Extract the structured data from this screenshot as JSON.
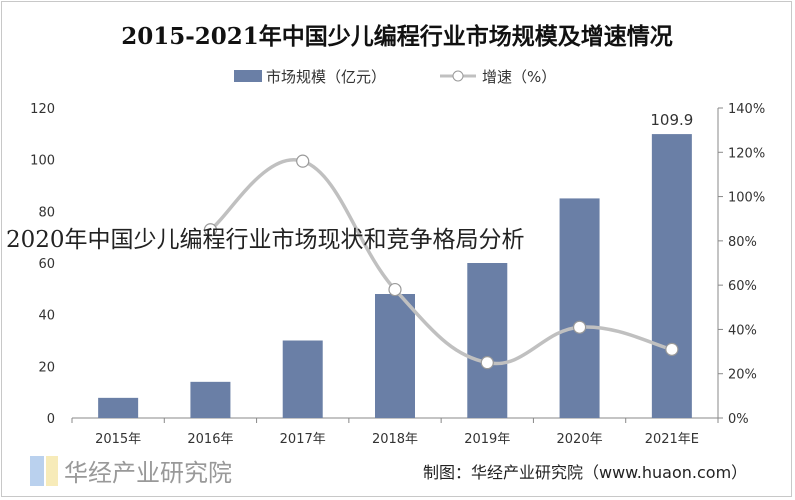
{
  "chart_data": {
    "type": "bar+line",
    "title": "2015-2021年中国少儿编程行业市场规模及增速情况",
    "categories": [
      "2015年",
      "2016年",
      "2017年",
      "2018年",
      "2019年",
      "2020年",
      "2021年E"
    ],
    "series": [
      {
        "name": "市场规模（亿元）",
        "type": "bar",
        "axis": "left",
        "color": "#6a7fa6",
        "values": [
          7.8,
          14,
          30,
          48,
          60,
          85,
          109.9
        ]
      },
      {
        "name": "增速（%）",
        "type": "line",
        "axis": "right",
        "color": "#c0c0c0",
        "values": [
          null,
          85,
          116,
          58,
          25,
          41,
          31
        ]
      }
    ],
    "data_labels": {
      "2021年E": "109.9"
    },
    "left_axis": {
      "ylim": [
        0,
        120
      ],
      "ticks": [
        "0",
        "20",
        "40",
        "60",
        "80",
        "100",
        "120"
      ]
    },
    "right_axis": {
      "ylim": [
        0,
        140
      ],
      "ticks": [
        "0%",
        "20%",
        "40%",
        "60%",
        "80%",
        "100%",
        "120%",
        "140%"
      ]
    },
    "legend": "top",
    "grid": false
  },
  "overlay_text": "2020年中国少儿编程行业市场现状和竞争格局分析",
  "source": "制图：华经产业研究院（www.huaon.com）",
  "watermark": "华经产业研究院 www.huaon.com"
}
